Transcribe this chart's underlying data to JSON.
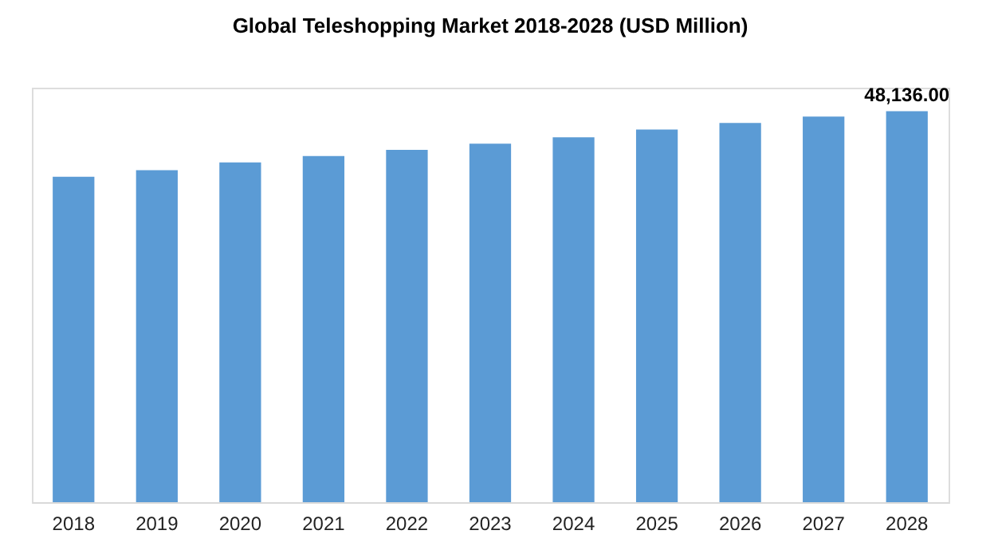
{
  "chart_data": {
    "type": "bar",
    "title": "Global Teleshopping Market 2018-2028 (USD Million)",
    "categories": [
      "2018",
      "2019",
      "2020",
      "2021",
      "2022",
      "2023",
      "2024",
      "2025",
      "2026",
      "2027",
      "2028"
    ],
    "color": "#5b9bd5",
    "values": [
      40050,
      40870,
      41830,
      42600,
      43370,
      44140,
      44910,
      45870,
      46690,
      47460,
      48136
    ],
    "value_labels": [
      null,
      null,
      null,
      null,
      null,
      null,
      null,
      null,
      null,
      null,
      "48,136.00"
    ]
  }
}
